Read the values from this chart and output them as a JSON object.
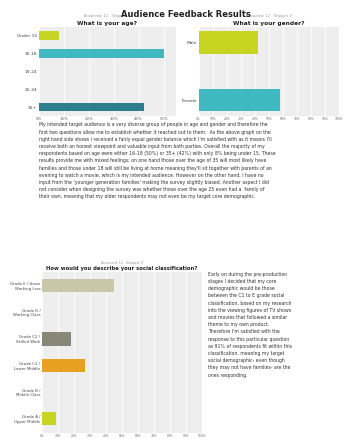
{
  "title": "Audience Feedback Results",
  "title_fontsize": 6,
  "background_color": "#ffffff",
  "age_chart": {
    "title": "What is your age?",
    "subtitle": "Answered: 12   Skipped: 0",
    "categories": [
      "35+",
      "25-34",
      "19-24",
      "16-18",
      "Under 15"
    ],
    "values": [
      42,
      0,
      0,
      50,
      8
    ],
    "colors": [
      "#2e7f8c",
      "#e0e0e0",
      "#e0e0e0",
      "#40b8c0",
      "#c8d422"
    ],
    "xlim": 55
  },
  "gender_chart": {
    "title": "What is your gender?",
    "subtitle": "Answered: 12   Skipped: 0",
    "categories": [
      "Female",
      "Male"
    ],
    "values": [
      58,
      42
    ],
    "colors": [
      "#40b8c0",
      "#c8d422"
    ],
    "xlim": 100
  },
  "social_chart": {
    "title": "How would you describe your social classification?",
    "subtitle": "Answered: 12   Skipped: 0",
    "categories": [
      "Grade A /\nUpper Middle",
      "Grade B /\nMiddle Class",
      "Grade C1 /\nLower Middle",
      "Grade C2 /\nSkilled Work",
      "Grade D /\nWorking Class",
      "Grade E / those\nWorking Less"
    ],
    "values": [
      9,
      0,
      27,
      18,
      0,
      45
    ],
    "colors": [
      "#c8d422",
      "#e8e8e8",
      "#e8a020",
      "#888878",
      "#e8e8e8",
      "#c8c8a8"
    ],
    "xlim": 100
  },
  "paragraph_text": [
    "My intended target audience is a very diverse group of people in age and gender and therefore the",
    "first two questions allow me to establish whether it reached out to them.  As the above graph on the",
    "right hand side shows I received a fairly equal gender balance which I'm satisfied with as it means I'll",
    "receive both an honest viewpoint and valuable input from both parties. Overall the majority of my",
    "respondents based on age were either 16-18 (50%) or 35+ (42%) with only 8% being under 15. These",
    "results provide me with mixed feelings; on one hand those over the age of 35 will most likely have",
    "families and those under 18 will still be living at home meaning they'll sit together with parents of an",
    "evening to watch a movie, which is my intended audience. However on the other hand, I have no",
    "input from the 'younger generation families' making the survey slightly biased. Another aspect I did",
    "not consider when designing the survey was whether those over the age 25 even had a  family of",
    "their own, meaning that my older respondents may not even be my target core demographic."
  ],
  "sidebar_text": [
    "Early on during the pre-production",
    "stages I decided that my core",
    "demographic would be those",
    "between the C1 to E grade social",
    "classification, based on my research",
    "into the viewing figures of TV shows",
    "and movies that followed a similar",
    "theme to my own product.",
    "Therefore I'm satisfied with the",
    "response to this particular question",
    "as 91% of respondents fit within this",
    "classification, meaning my target",
    "social demographic- even though",
    "they may not have families- are the",
    "ones responding."
  ]
}
